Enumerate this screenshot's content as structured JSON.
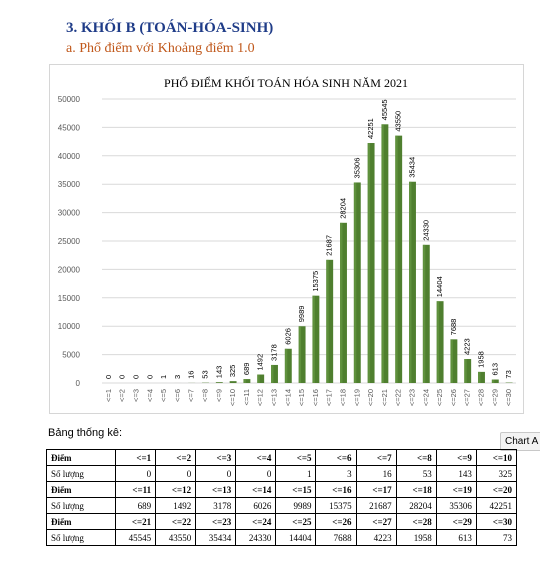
{
  "section_heading": "3.  KHỐI B (TOÁN-HÓA-SINH)",
  "sub_heading": "a.  Phổ điểm với Khoảng điểm 1.0",
  "stats_label": "Bảng thống kê:",
  "chart_tab": "Chart A",
  "colors": {
    "bar": "#4f7f2f",
    "bar_highlight": "#6b9d47",
    "grid": "#d9d9d9",
    "axis_text": "#595959",
    "heading": "#1f3c88",
    "subheading": "#c0581b"
  },
  "chart_data": {
    "type": "bar",
    "title": "PHỔ ĐIỂM KHỐI TOÁN HÓA SINH NĂM 2021",
    "xlabel": "",
    "ylabel": "",
    "ylim": [
      0,
      50000
    ],
    "yticks": [
      "0",
      "5000",
      "10000",
      "15000",
      "20000",
      "25000",
      "30000",
      "35000",
      "40000",
      "45000",
      "50000"
    ],
    "grid": true,
    "legend": "none",
    "categories": [
      "<=1",
      "<=2",
      "<=3",
      "<=4",
      "<=5",
      "<=6",
      "<=7",
      "<=8",
      "<=9",
      "<=10",
      "<=11",
      "<=12",
      "<=13",
      "<=14",
      "<=15",
      "<=16",
      "<=17",
      "<=18",
      "<=19",
      "<=20",
      "<=21",
      "<=22",
      "<=23",
      "<=24",
      "<=25",
      "<=26",
      "<=27",
      "<=28",
      "<=29",
      "<=30"
    ],
    "values": [
      0,
      0,
      0,
      0,
      1,
      3,
      16,
      53,
      143,
      325,
      689,
      1492,
      3178,
      6026,
      9989,
      15375,
      21687,
      28204,
      35306,
      42251,
      45545,
      43550,
      35434,
      24330,
      14404,
      7688,
      4223,
      1958,
      613,
      73
    ]
  },
  "table": {
    "rows": [
      {
        "label": "Điểm",
        "header": true,
        "cells": [
          "<=1",
          "<=2",
          "<=3",
          "<=4",
          "<=5",
          "<=6",
          "<=7",
          "<=8",
          "<=9",
          "<=10"
        ]
      },
      {
        "label": "Số lượng",
        "header": false,
        "cells": [
          "0",
          "0",
          "0",
          "0",
          "1",
          "3",
          "16",
          "53",
          "143",
          "325"
        ]
      },
      {
        "label": "Điểm",
        "header": true,
        "cells": [
          "<=11",
          "<=12",
          "<=13",
          "<=14",
          "<=15",
          "<=16",
          "<=17",
          "<=18",
          "<=19",
          "<=20"
        ]
      },
      {
        "label": "Số lượng",
        "header": false,
        "cells": [
          "689",
          "1492",
          "3178",
          "6026",
          "9989",
          "15375",
          "21687",
          "28204",
          "35306",
          "42251"
        ]
      },
      {
        "label": "Điểm",
        "header": true,
        "cells": [
          "<=21",
          "<=22",
          "<=23",
          "<=24",
          "<=25",
          "<=26",
          "<=27",
          "<=28",
          "<=29",
          "<=30"
        ]
      },
      {
        "label": "Số lượng",
        "header": false,
        "cells": [
          "45545",
          "43550",
          "35434",
          "24330",
          "14404",
          "7688",
          "4223",
          "1958",
          "613",
          "73"
        ]
      }
    ]
  }
}
